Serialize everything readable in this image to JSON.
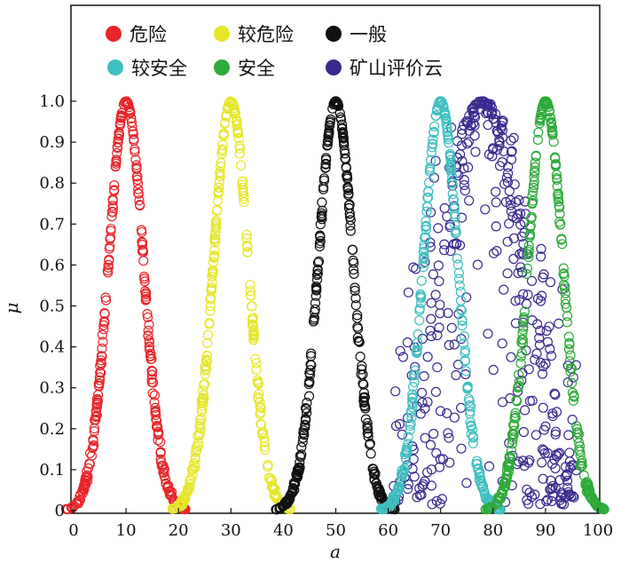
{
  "chart_data": {
    "type": "scatter",
    "xlabel": "a",
    "ylabel": "μ",
    "xlim": [
      0,
      100
    ],
    "ylim": [
      0,
      1.0
    ],
    "xticks": [
      "0",
      "10",
      "20",
      "30",
      "40",
      "50",
      "60",
      "70",
      "80",
      "90",
      "100"
    ],
    "yticks": [
      "0",
      "0.1",
      "0.2",
      "0.3",
      "0.4",
      "0.5",
      "0.6",
      "0.7",
      "0.8",
      "0.9",
      "1.0"
    ],
    "grid": false,
    "legend": "top",
    "series": [
      {
        "name": "危险",
        "color": "#e8262a",
        "ex": 10,
        "range": [
          0,
          20
        ]
      },
      {
        "name": "较危险",
        "color": "#e6e62a",
        "ex": 30,
        "range": [
          20,
          40
        ]
      },
      {
        "name": "一般",
        "color": "#111111",
        "ex": 50,
        "range": [
          40,
          60
        ]
      },
      {
        "name": "较安全",
        "color": "#3fbfbf",
        "ex": 70,
        "range": [
          60,
          80
        ]
      },
      {
        "name": "安全",
        "color": "#2eaa3a",
        "ex": 90,
        "range": [
          80,
          100
        ]
      },
      {
        "name": "矿山评价云",
        "color": "#3a2a8f",
        "ex": 78,
        "range": [
          61,
          96
        ]
      }
    ]
  }
}
